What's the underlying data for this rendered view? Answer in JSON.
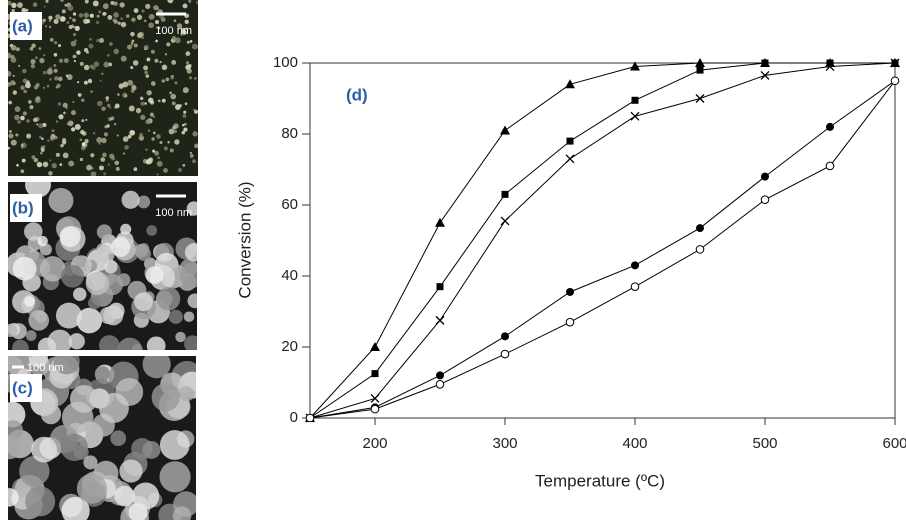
{
  "panels": [
    {
      "label": "(a)",
      "scale_bar": "100 nm"
    },
    {
      "label": "(b)",
      "scale_bar": "100 nm"
    },
    {
      "label": "(c)",
      "scale_bar": "100 nm"
    }
  ],
  "chart_data": {
    "type": "line",
    "annotation": "(d)",
    "x_label": "Temperature (ºC)",
    "y_label": "Conversion (%)",
    "x": [
      150,
      200,
      250,
      300,
      350,
      400,
      450,
      500,
      550,
      600
    ],
    "xlim": [
      150,
      600
    ],
    "xticks": [
      200,
      300,
      400,
      500,
      600
    ],
    "ylim": [
      0,
      100
    ],
    "yticks": [
      0,
      20,
      40,
      60,
      80,
      100
    ],
    "series": [
      {
        "marker": "triangle",
        "color": "#000000",
        "values": [
          0,
          20,
          55,
          81,
          94,
          99,
          100,
          100,
          100,
          100
        ]
      },
      {
        "marker": "square",
        "color": "#000000",
        "values": [
          0,
          12.5,
          37,
          63,
          78,
          89.5,
          98,
          100,
          100,
          100
        ]
      },
      {
        "marker": "cross",
        "color": "#000000",
        "values": [
          0,
          5.5,
          27.5,
          55.5,
          73,
          85,
          90,
          96.5,
          99,
          100
        ]
      },
      {
        "marker": "circle",
        "color": "#000000",
        "values": [
          0,
          3,
          12,
          23,
          35.5,
          43,
          53.5,
          68,
          82,
          95
        ]
      },
      {
        "marker": "open-circle",
        "color": "#000000",
        "values": [
          0,
          2.5,
          9.5,
          18,
          27,
          37,
          47.5,
          61.5,
          71,
          95
        ]
      }
    ]
  }
}
